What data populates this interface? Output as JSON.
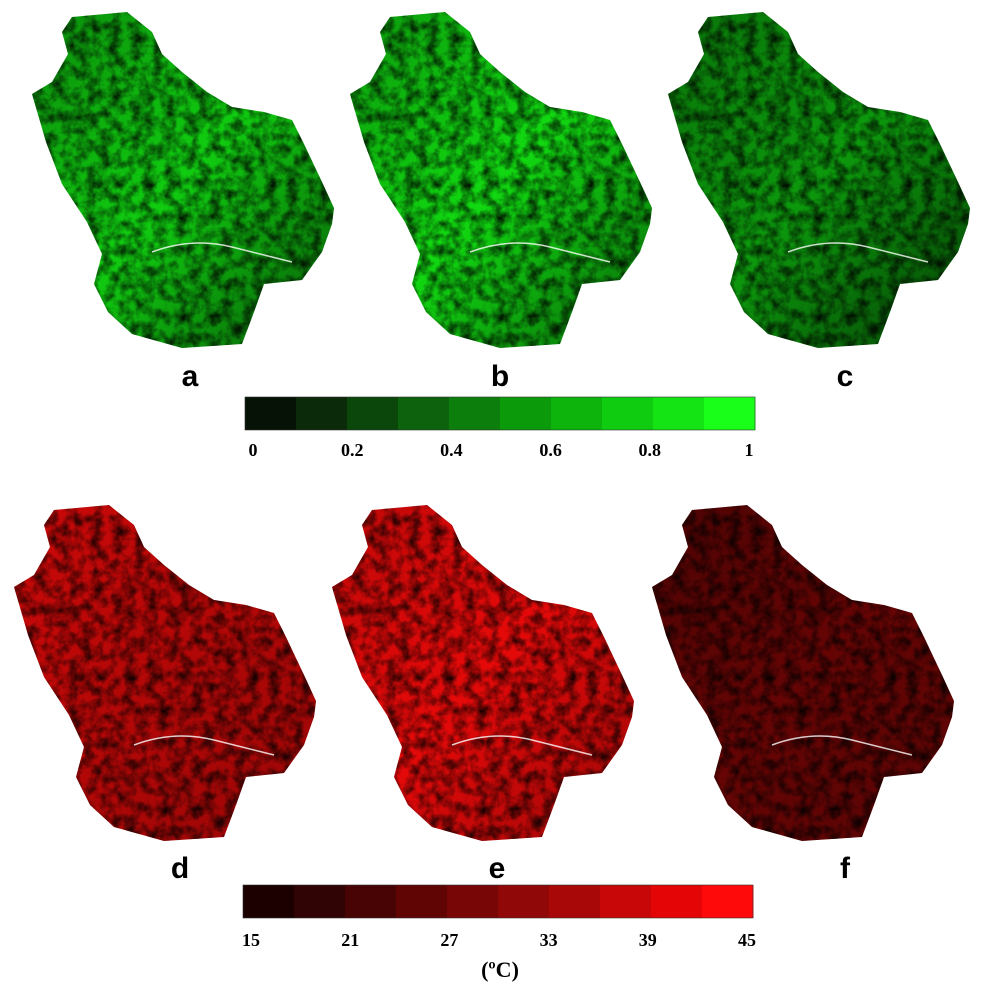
{
  "panels": [
    {
      "label": "a",
      "palette": "green",
      "shade": [
        0.55,
        0.8,
        0.35
      ]
    },
    {
      "label": "b",
      "palette": "green",
      "shade": [
        0.6,
        0.85,
        0.4
      ]
    },
    {
      "label": "c",
      "palette": "green",
      "shade": [
        0.45,
        0.6,
        0.25
      ]
    },
    {
      "label": "d",
      "palette": "red",
      "shade": [
        0.8,
        0.7,
        0.6
      ]
    },
    {
      "label": "e",
      "palette": "red",
      "shade": [
        0.75,
        0.9,
        0.6
      ]
    },
    {
      "label": "f",
      "palette": "red",
      "shade": [
        0.3,
        0.4,
        0.35
      ]
    }
  ],
  "colorbars": [
    {
      "palette": "green",
      "colors": [
        "#061206",
        "#0a2a0a",
        "#0b460b",
        "#0d620d",
        "#0b7e0b",
        "#0a9a0a",
        "#0cb40c",
        "#10cc10",
        "#14e414",
        "#1aff1a"
      ],
      "ticks": [
        "0",
        "0.2",
        "0.4",
        "0.6",
        "0.8",
        "1"
      ]
    },
    {
      "palette": "red",
      "colors": [
        "#1c0000",
        "#300404",
        "#480404",
        "#600404",
        "#780606",
        "#900808",
        "#a80808",
        "#c80808",
        "#e40606",
        "#ff0a0a"
      ],
      "ticks": [
        "15",
        "21",
        "27",
        "33",
        "39",
        "45"
      ],
      "unit": "(ºC)"
    }
  ]
}
